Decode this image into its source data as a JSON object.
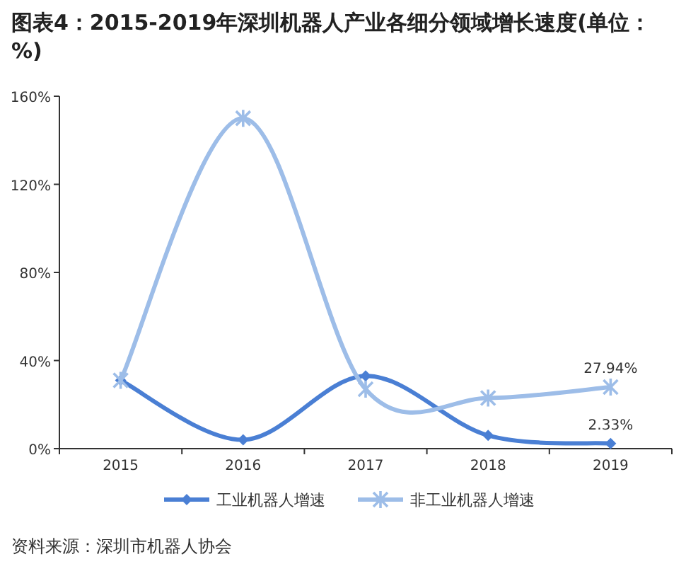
{
  "chart_data": {
    "type": "line",
    "title": "图表4：2015-2019年深圳机器人产业各细分领域增长速度(单位：%)",
    "categories": [
      "2015",
      "2016",
      "2017",
      "2018",
      "2019"
    ],
    "series": [
      {
        "name": "工业机器人增速",
        "color": "#4a7fd4",
        "marker": "diamond",
        "values": [
          31,
          4,
          33,
          6,
          2.33
        ],
        "value_labels": [
          null,
          null,
          null,
          null,
          "2.33%"
        ]
      },
      {
        "name": "非工业机器人增速",
        "color": "#9dbde8",
        "marker": "cross",
        "values": [
          31,
          150,
          27,
          23,
          27.94
        ],
        "value_labels": [
          null,
          null,
          null,
          null,
          "27.94%"
        ]
      }
    ],
    "ylim": [
      0,
      160
    ],
    "yticks": [
      {
        "value": 0,
        "label": "0%"
      },
      {
        "value": 40,
        "label": "40%"
      },
      {
        "value": 80,
        "label": "80%"
      },
      {
        "value": 120,
        "label": "120%"
      },
      {
        "value": 160,
        "label": "160%"
      }
    ],
    "grid": false,
    "legend": "bottom",
    "line_style": "solid",
    "annotations": [
      "资料来源：深圳市机器人协会"
    ]
  }
}
